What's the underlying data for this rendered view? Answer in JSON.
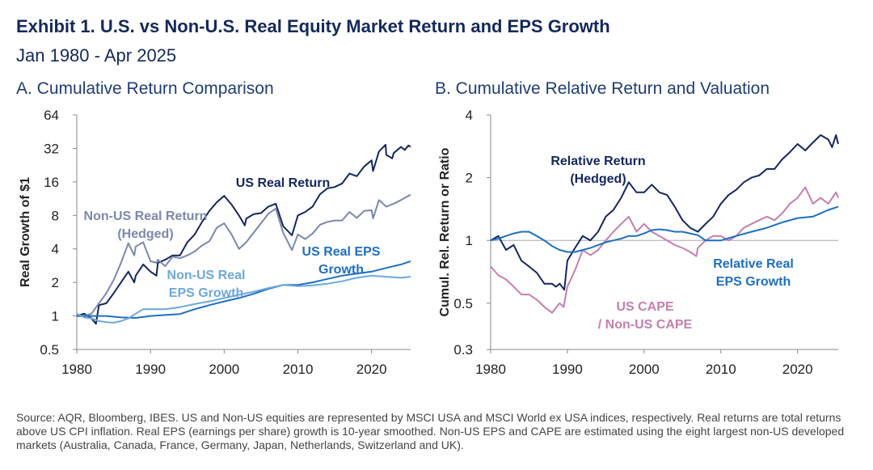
{
  "header": {
    "title": "Exhibit 1. U.S. vs Non-U.S. Real Equity Market Return and EPS Growth",
    "subtitle": "Jan 1980 - Apr 2025"
  },
  "source": "Source: AQR, Bloomberg, IBES. US and Non-US equities are represented by MSCI USA and MSCI World ex USA indices, respectively. Real returns are total returns above US CPI inflation. Real EPS (earnings per share) growth is 10-year smoothed. Non-US EPS and CAPE are estimated using the eight largest non-US developed markets (Australia, Canada, France, Germany, Japan, Netherlands, Switzerland and UK).",
  "colors": {
    "navy": "#14265e",
    "slate": "#7a88ad",
    "blue": "#1f6fc0",
    "lightblue": "#6da8dc",
    "pink": "#c47fae",
    "axis": "#888888"
  },
  "chart_data": [
    {
      "type": "line",
      "panel_title": "A. Cumulative Return Comparison",
      "ylabel": "Real Growth of $1",
      "yscale": "log2",
      "ylim": [
        0.5,
        64
      ],
      "xlim": [
        1980,
        2025.3
      ],
      "yticks": [
        "0.5",
        "1",
        "2",
        "4",
        "8",
        "16",
        "32",
        "64"
      ],
      "ytick_values": [
        0.5,
        1,
        2,
        4,
        8,
        16,
        32,
        64
      ],
      "xticks": [
        "1980",
        "1990",
        "2000",
        "2010",
        "2020"
      ],
      "xtick_values": [
        1980,
        1990,
        2000,
        2010,
        2020
      ],
      "series": [
        {
          "name": "US Real Return",
          "label": "US Real Return",
          "color": "#14265e",
          "x": [
            1980,
            1981,
            1982,
            1982.6,
            1983,
            1984,
            1985,
            1986,
            1987,
            1987.8,
            1988,
            1989,
            1990,
            1990.8,
            1991,
            1992,
            1993,
            1994,
            1995,
            1996,
            1997,
            1998,
            1999,
            2000,
            2001,
            2002,
            2002.8,
            2003,
            2004,
            2005,
            2006,
            2007,
            2008,
            2009.2,
            2010,
            2011,
            2012,
            2013,
            2014,
            2015,
            2016,
            2017,
            2018,
            2019,
            2020,
            2020.2,
            2021,
            2021.9,
            2022,
            2022.8,
            2023,
            2024,
            2024.5,
            2025,
            2025.3
          ],
          "y": [
            1.0,
            1.05,
            0.95,
            0.85,
            1.25,
            1.3,
            1.6,
            2.0,
            2.5,
            2.0,
            2.3,
            2.9,
            2.5,
            2.3,
            3.0,
            3.2,
            3.5,
            3.5,
            4.6,
            5.4,
            7.0,
            8.8,
            10.5,
            12.0,
            10.0,
            8.0,
            6.5,
            7.5,
            8.2,
            8.4,
            9.6,
            10.2,
            6.4,
            5.3,
            8.0,
            8.6,
            9.6,
            12.4,
            14.0,
            14.4,
            15.5,
            19.0,
            18.0,
            22.0,
            25.0,
            20.0,
            30.0,
            34.5,
            28.0,
            26.0,
            29.0,
            33.0,
            31.0,
            34.0,
            33.0
          ]
        },
        {
          "name": "Non-US Real Return (Hedged)",
          "label": "Non-US Real Return (Hedged)",
          "color": "#7a88ad",
          "x": [
            1980,
            1981,
            1982,
            1983,
            1984,
            1985,
            1986,
            1987,
            1987.8,
            1988,
            1989,
            1990,
            1990.8,
            1991,
            1992,
            1993,
            1994,
            1995,
            1996,
            1997,
            1998,
            1999,
            2000,
            2001,
            2002,
            2003,
            2004,
            2005,
            2006,
            2007,
            2008,
            2009.2,
            2010,
            2011,
            2012,
            2013,
            2014,
            2015,
            2016,
            2017,
            2018,
            2019,
            2020,
            2020.2,
            2021,
            2022,
            2023,
            2024,
            2025,
            2025.3
          ],
          "y": [
            1.0,
            1.0,
            1.05,
            1.3,
            1.6,
            2.1,
            3.0,
            4.5,
            3.5,
            4.2,
            4.6,
            3.1,
            3.0,
            3.2,
            2.8,
            3.4,
            3.3,
            3.5,
            3.8,
            4.3,
            4.7,
            6.2,
            6.8,
            5.4,
            4.0,
            4.6,
            5.6,
            6.8,
            8.3,
            9.2,
            5.6,
            3.9,
            5.4,
            4.9,
            5.5,
            6.6,
            7.0,
            7.2,
            7.2,
            8.6,
            7.6,
            8.8,
            8.9,
            7.5,
            11.0,
            9.6,
            10.2,
            11.0,
            12.0,
            12.3
          ]
        },
        {
          "name": "US Real EPS Growth",
          "label": "US Real EPS Growth",
          "color": "#1f6fc0",
          "x": [
            1980,
            1982,
            1984,
            1986,
            1988,
            1990,
            1992,
            1994,
            1996,
            1998,
            2000,
            2002,
            2004,
            2006,
            2008,
            2010,
            2012,
            2014,
            2016,
            2018,
            2020,
            2022,
            2024,
            2025.3
          ],
          "y": [
            1.0,
            1.0,
            1.0,
            0.97,
            0.96,
            1.0,
            1.02,
            1.04,
            1.15,
            1.25,
            1.35,
            1.45,
            1.58,
            1.75,
            1.9,
            1.9,
            2.0,
            2.15,
            2.3,
            2.4,
            2.5,
            2.7,
            2.9,
            3.1
          ]
        },
        {
          "name": "Non-US Real EPS Growth",
          "label": "Non-US Real EPS Growth",
          "color": "#6da8dc",
          "x": [
            1980,
            1981,
            1982,
            1983,
            1984,
            1985,
            1986,
            1987,
            1988,
            1989,
            1990,
            1992,
            1994,
            1996,
            1998,
            2000,
            2002,
            2004,
            2006,
            2008,
            2010,
            2012,
            2014,
            2016,
            2018,
            2020,
            2022,
            2024,
            2025.3
          ],
          "y": [
            1.05,
            0.97,
            0.95,
            0.9,
            0.88,
            0.87,
            0.9,
            0.95,
            1.05,
            1.15,
            1.15,
            1.15,
            1.2,
            1.28,
            1.35,
            1.45,
            1.55,
            1.65,
            1.78,
            1.9,
            1.85,
            1.88,
            1.95,
            2.05,
            2.2,
            2.3,
            2.25,
            2.2,
            2.25
          ]
        }
      ]
    },
    {
      "type": "line",
      "panel_title": "B. Cumulative Relative Return and Valuation",
      "ylabel": "Cumul. Rel. Return or Ratio",
      "yscale": "log",
      "ylim": [
        0.3,
        4
      ],
      "xlim": [
        1980,
        2025.3
      ],
      "yticks": [
        "0.3",
        "0.5",
        "1",
        "2",
        "4"
      ],
      "ytick_values": [
        0.3,
        0.5,
        1,
        2,
        4
      ],
      "xticks": [
        "1980",
        "1990",
        "2000",
        "2010",
        "2020"
      ],
      "xtick_values": [
        1980,
        1990,
        2000,
        2010,
        2020
      ],
      "series": [
        {
          "name": "Relative Return (Hedged)",
          "label": "Relative Return (Hedged)",
          "color": "#14265e",
          "x": [
            1980,
            1981,
            1982,
            1983,
            1984,
            1985,
            1986,
            1987,
            1988,
            1988.5,
            1989,
            1989.6,
            1990,
            1991,
            1992,
            1993,
            1994,
            1995,
            1996,
            1997,
            1998,
            1999,
            2000,
            2001,
            2002,
            2003,
            2004,
            2005,
            2006,
            2007,
            2008,
            2009,
            2010,
            2011,
            2012,
            2013,
            2014,
            2015,
            2016,
            2017,
            2018,
            2019,
            2020,
            2021,
            2022,
            2023,
            2024,
            2024.5,
            2025,
            2025.3
          ],
          "y": [
            1.0,
            1.05,
            0.9,
            0.95,
            0.8,
            0.75,
            0.7,
            0.62,
            0.62,
            0.6,
            0.62,
            0.58,
            0.8,
            0.92,
            1.05,
            1.0,
            1.1,
            1.3,
            1.4,
            1.6,
            1.9,
            1.7,
            1.7,
            1.85,
            1.7,
            1.65,
            1.45,
            1.25,
            1.15,
            1.1,
            1.2,
            1.3,
            1.5,
            1.65,
            1.75,
            1.9,
            2.0,
            2.05,
            2.2,
            2.2,
            2.45,
            2.65,
            2.9,
            2.7,
            2.95,
            3.2,
            3.05,
            2.8,
            3.2,
            2.9
          ]
        },
        {
          "name": "US CAPE / Non-US CAPE",
          "label": "US CAPE / Non-US CAPE",
          "color": "#c47fae",
          "x": [
            1980,
            1981,
            1982,
            1983,
            1984,
            1985,
            1986,
            1987,
            1988,
            1989,
            1989.5,
            1990,
            1991,
            1992,
            1993,
            1994,
            1995,
            1996,
            1997,
            1998,
            1999,
            2000,
            2001,
            2002,
            2003,
            2004,
            2005,
            2006,
            2006.8,
            2007,
            2008,
            2009,
            2010,
            2011,
            2012,
            2013,
            2014,
            2015,
            2016,
            2017,
            2018,
            2019,
            2020,
            2021,
            2022,
            2023,
            2024,
            2025,
            2025.3
          ],
          "y": [
            0.75,
            0.68,
            0.65,
            0.6,
            0.55,
            0.55,
            0.52,
            0.48,
            0.45,
            0.5,
            0.48,
            0.6,
            0.72,
            0.9,
            0.85,
            0.9,
            1.0,
            1.1,
            1.2,
            1.3,
            1.1,
            1.2,
            1.1,
            1.05,
            1.0,
            0.95,
            0.92,
            0.88,
            0.84,
            0.92,
            1.0,
            1.05,
            1.05,
            1.0,
            1.05,
            1.15,
            1.2,
            1.25,
            1.3,
            1.25,
            1.35,
            1.5,
            1.6,
            1.8,
            1.5,
            1.6,
            1.5,
            1.7,
            1.6
          ]
        },
        {
          "name": "Relative Real EPS Growth",
          "label": "Relative Real EPS Growth",
          "color": "#1f6fc0",
          "x": [
            1980,
            1981,
            1982,
            1983,
            1984,
            1985,
            1986,
            1987,
            1988,
            1989,
            1990,
            1991,
            1992,
            1993,
            1994,
            1995,
            1996,
            1997,
            1998,
            1999,
            2000,
            2001,
            2002,
            2003,
            2004,
            2005,
            2006,
            2007,
            2008,
            2010,
            2012,
            2014,
            2016,
            2018,
            2020,
            2022,
            2024,
            2025.3
          ],
          "y": [
            1.0,
            1.02,
            1.05,
            1.08,
            1.1,
            1.1,
            1.05,
            1.0,
            0.94,
            0.9,
            0.88,
            0.88,
            0.9,
            0.92,
            0.95,
            0.98,
            1.0,
            1.02,
            1.05,
            1.05,
            1.08,
            1.12,
            1.13,
            1.12,
            1.1,
            1.1,
            1.08,
            1.06,
            1.0,
            1.0,
            1.05,
            1.1,
            1.15,
            1.22,
            1.28,
            1.3,
            1.4,
            1.45
          ]
        }
      ]
    }
  ]
}
